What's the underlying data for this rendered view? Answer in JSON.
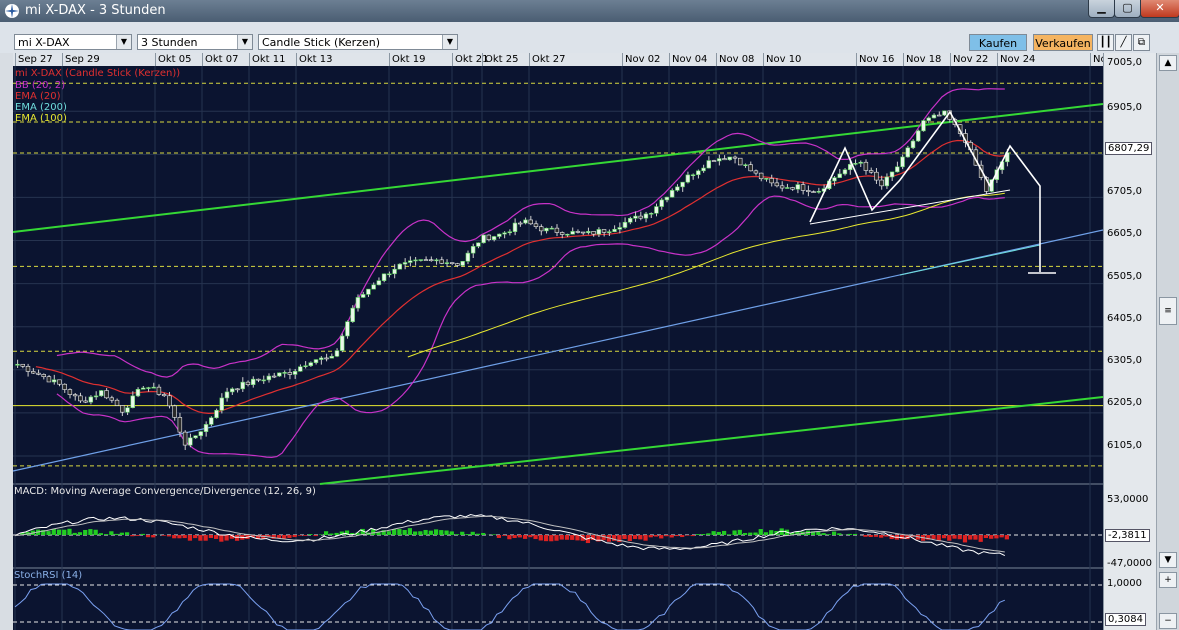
{
  "window": {
    "title": "mi X-DAX - 3 Stunden",
    "min_icon": "minimize-icon",
    "max_icon": "maximize-icon",
    "close_icon": "close-icon"
  },
  "toolbar": {
    "instrument": "mi X-DAX",
    "interval": "3 Stunden",
    "chart_type": "Candle Stick (Kerzen)",
    "buy_label": "Kaufen",
    "sell_label": "Verkaufen",
    "buy_color": "#7fbfe8",
    "sell_color": "#f5b461"
  },
  "indicators": {
    "series_name": "mi X-DAX (Candle Stick (Kerzen))",
    "bb": "BB (20, 2)",
    "ema20": "EMA (20)",
    "ema200": "EMA (200)",
    "ema100": "EMA (100)",
    "macd_title": "MACD: Moving Average Convergence/Divergence (12, 26, 9)",
    "stoch_title": "StochRSI (14)"
  },
  "colors": {
    "background": "#0b1430",
    "bollinger": "#c832c8",
    "ema20": "#e03030",
    "ema200": "#6fa0e8",
    "ema100": "#e8e830",
    "trend_channel": "#35d835",
    "candle_up": "#f0f0f0",
    "candle_down": "#f0f0f0",
    "macd_hist_up": "#22cc22",
    "macd_hist_down": "#dd2222"
  },
  "chart_data": {
    "type": "line",
    "title": "mi X-DAX - 3 Stunden",
    "x_ticks": [
      "Sep 27",
      "Sep 29",
      "Okt 05",
      "Okt 07",
      "Okt 11",
      "Okt 13",
      "Okt 19",
      "Okt 21",
      "Okt 25",
      "Okt 27",
      "Nov 02",
      "Nov 04",
      "Nov 08",
      "Nov 10",
      "Nov 16",
      "Nov 18",
      "Nov 22",
      "Nov 24",
      "Nc"
    ],
    "price_ticks": [
      "7005,0",
      "6905,0",
      "6807,29",
      "6705,0",
      "6605,0",
      "6505,0",
      "6405,0",
      "6305,0",
      "6205,0",
      "6105,0"
    ],
    "last_price": "6807,29",
    "ylim": [
      6040,
      7010
    ],
    "series": [
      {
        "name": "mi X-DAX",
        "close_path": [
          6318,
          6295,
          6270,
          6230,
          6255,
          6210,
          6270,
          6245,
          6130,
          6180,
          6260,
          6275,
          6290,
          6300,
          6330,
          6330,
          6460,
          6510,
          6545,
          6555,
          6560,
          6550,
          6610,
          6620,
          6650,
          6630,
          6625,
          6620,
          6630,
          6650,
          6670,
          6720,
          6760,
          6795,
          6800,
          6760,
          6730,
          6730,
          6720,
          6760,
          6790,
          6730,
          6790,
          6880,
          6900,
          6840,
          6720,
          6810
        ]
      }
    ],
    "macd": {
      "yticks": [
        "53,0000",
        "-2,3811",
        "-47,0000"
      ],
      "current": "-2,3811"
    },
    "stoch_rsi": {
      "yticks": [
        "1,0000",
        "0,3084"
      ],
      "current": "0,3084"
    }
  }
}
